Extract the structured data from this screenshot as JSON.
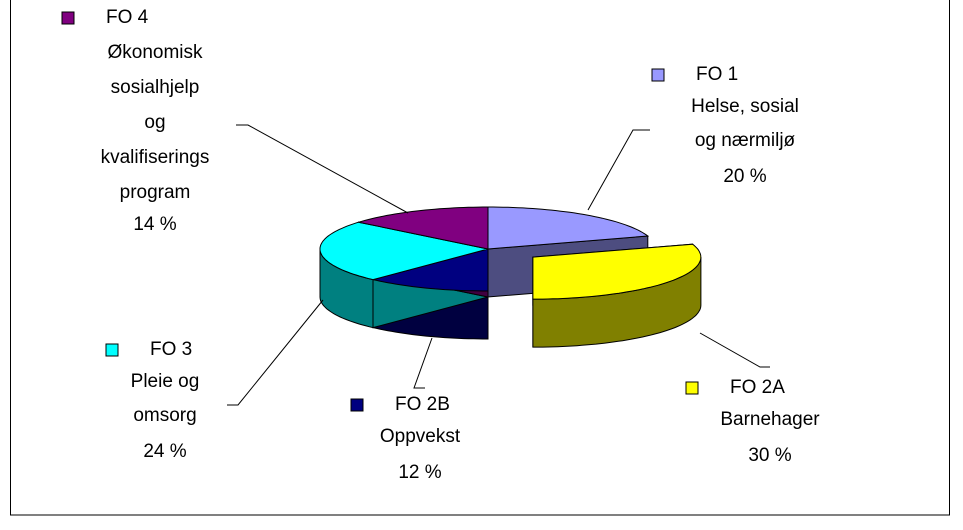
{
  "chart_data": {
    "type": "pie",
    "categories": [
      [
        "FO 1",
        "Helse, sosial",
        "og nærmiljø"
      ],
      [
        "FO 2A",
        "Barnehager"
      ],
      [
        "FO 2B",
        "Oppvekst"
      ],
      [
        "FO 3",
        "Pleie og",
        "omsorg"
      ],
      [
        "FO 4",
        "Økonomisk",
        "sosialhjelp",
        "og",
        "kvalifiserings",
        "program"
      ]
    ],
    "values": [
      20,
      30,
      12,
      24,
      14
    ],
    "value_labels": [
      "20 %",
      "30 %",
      "12 %",
      "24 %",
      "14 %"
    ],
    "colors": [
      "#9999ff",
      "#ffff00",
      "#000080",
      "#00ffff",
      "#800080"
    ],
    "side_colors": [
      "#4d4d80",
      "#808000",
      "#000040",
      "#008080",
      "#400040"
    ],
    "explode": [
      false,
      true,
      false,
      false,
      false
    ]
  }
}
